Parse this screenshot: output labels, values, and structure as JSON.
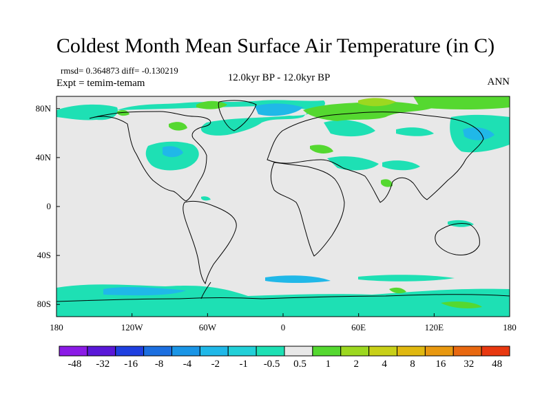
{
  "title": "Coldest Month Mean Surface Air Temperature (in C)",
  "stats": "rmsd= 0.364873 diff= -0.130219",
  "experiment": "Expt = temim-temam",
  "period": "12.0kyr BP - 12.0kyr BP",
  "season": "ANN",
  "map": {
    "lon_ticks": [
      {
        "lon": -180,
        "label": "180"
      },
      {
        "lon": -120,
        "label": "120W"
      },
      {
        "lon": -60,
        "label": "60W"
      },
      {
        "lon": 0,
        "label": "0"
      },
      {
        "lon": 60,
        "label": "60E"
      },
      {
        "lon": 120,
        "label": "120E"
      },
      {
        "lon": 180,
        "label": "180"
      }
    ],
    "lat_ticks": [
      {
        "lat": 80,
        "label": "80N"
      },
      {
        "lat": 40,
        "label": "40N"
      },
      {
        "lat": 0,
        "label": "0"
      },
      {
        "lat": -40,
        "label": "40S"
      },
      {
        "lat": -80,
        "label": "80S"
      }
    ]
  },
  "colorbar": {
    "colors": [
      "#8b1be6",
      "#5a18d8",
      "#1f40e0",
      "#1c6fe0",
      "#1a95e6",
      "#20b8e8",
      "#22d0d8",
      "#1ee0b4",
      "#e8e8e8",
      "#55d830",
      "#9cd820",
      "#c8d018",
      "#e0b810",
      "#e89810",
      "#e86810",
      "#e83810"
    ],
    "labels": [
      "-48",
      "-32",
      "-16",
      "-8",
      "-4",
      "-2",
      "-1",
      "-0.5",
      "0.5",
      "1",
      "2",
      "4",
      "8",
      "16",
      "32",
      "48"
    ]
  }
}
